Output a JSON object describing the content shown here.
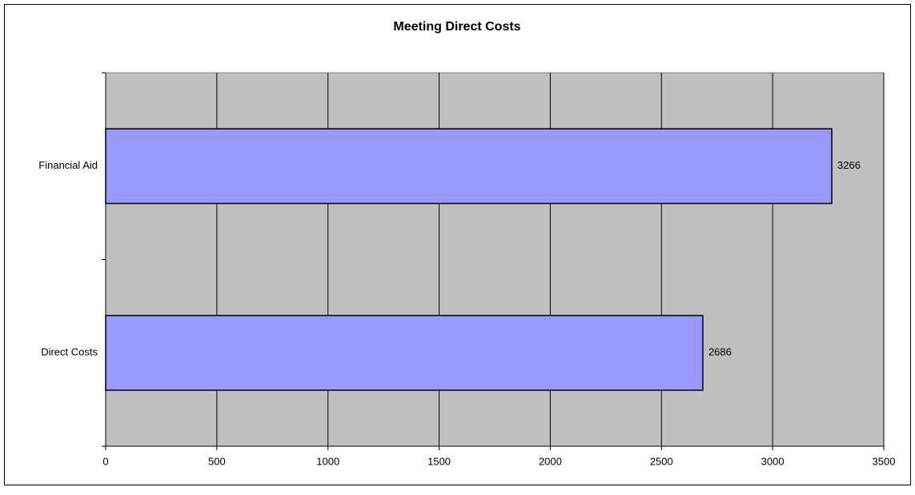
{
  "chart_data": {
    "type": "bar",
    "orientation": "horizontal",
    "title": "Meeting Direct Costs",
    "categories": [
      "Direct Costs",
      "Financial Aid"
    ],
    "values": [
      2686,
      3266
    ],
    "color": "#9999ff",
    "xlim": [
      0,
      3500
    ],
    "xticks": [
      0,
      500,
      1000,
      1500,
      2000,
      2500,
      3000,
      3500
    ],
    "grid": true
  }
}
